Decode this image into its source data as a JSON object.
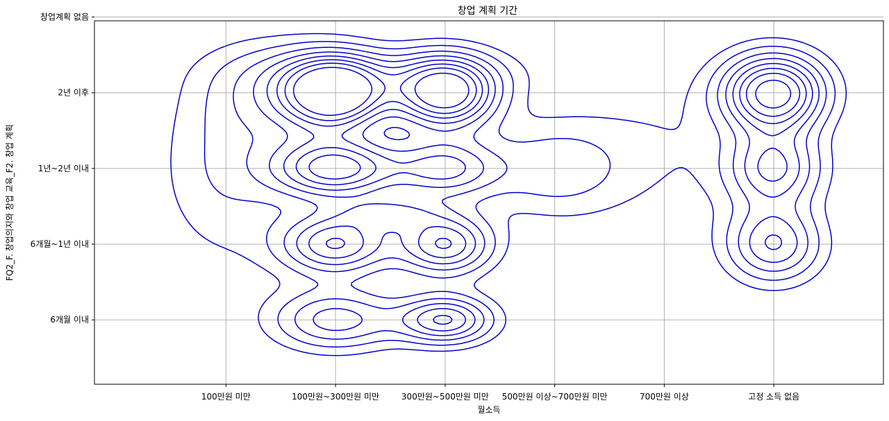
{
  "chart_data": {
    "type": "kde-contour",
    "title": "창업 계획 기간",
    "xlabel": "월소득",
    "ylabel": "FQ2_F. 창업의지와 창업 교육_F2. 창업 계획",
    "x_categories": [
      "100만원 미만",
      "100만원~300만원 미만",
      "300만원~500만원 미만",
      "500만원 이상~700만원 미만",
      "700만원 이상",
      "고정 소득 없음"
    ],
    "y_categories": [
      "6개월 이내",
      "6개월~1년 이내",
      "1년~2년 이내",
      "2년 이후",
      "창업계획 없음"
    ],
    "xlim": [
      -1.2,
      6.0
    ],
    "ylim": [
      -0.85,
      3.95
    ],
    "grid": true,
    "line_color": "#0000cc",
    "density_peaks": [
      {
        "x": 1.0,
        "y": 3.0,
        "sx": 0.32,
        "sy": 0.32,
        "w": 1.0
      },
      {
        "x": 2.0,
        "y": 3.0,
        "sx": 0.32,
        "sy": 0.32,
        "w": 0.95
      },
      {
        "x": 0.5,
        "y": 3.0,
        "sx": 0.45,
        "sy": 0.45,
        "w": 0.25
      },
      {
        "x": 1.5,
        "y": 3.3,
        "sx": 0.9,
        "sy": 0.25,
        "w": 0.15
      },
      {
        "x": 1.0,
        "y": 2.0,
        "sx": 0.4,
        "sy": 0.28,
        "w": 0.75
      },
      {
        "x": 2.0,
        "y": 2.0,
        "sx": 0.35,
        "sy": 0.28,
        "w": 0.5
      },
      {
        "x": 1.5,
        "y": 1.4,
        "sx": 0.3,
        "sy": 0.15,
        "w": 0.3
      },
      {
        "x": 1.0,
        "y": 1.0,
        "sx": 0.35,
        "sy": 0.28,
        "w": 0.6
      },
      {
        "x": 2.0,
        "y": 1.0,
        "sx": 0.3,
        "sy": 0.28,
        "w": 0.6
      },
      {
        "x": 1.0,
        "y": 0.0,
        "sx": 0.4,
        "sy": 0.28,
        "w": 0.45
      },
      {
        "x": 2.0,
        "y": 0.0,
        "sx": 0.3,
        "sy": 0.22,
        "w": 0.6
      },
      {
        "x": 3.0,
        "y": 2.0,
        "sx": 0.45,
        "sy": 0.45,
        "w": 0.25
      },
      {
        "x": 0.0,
        "y": 2.0,
        "sx": 0.45,
        "sy": 0.9,
        "w": 0.2
      },
      {
        "x": 5.0,
        "y": 3.0,
        "sx": 0.32,
        "sy": 0.35,
        "w": 0.9
      },
      {
        "x": 5.0,
        "y": 2.0,
        "sx": 0.3,
        "sy": 0.35,
        "w": 0.5
      },
      {
        "x": 5.0,
        "y": 1.0,
        "sx": 0.3,
        "sy": 0.35,
        "w": 0.5
      },
      {
        "x": 4.0,
        "y": 2.3,
        "sx": 0.6,
        "sy": 0.8,
        "w": 0.1
      }
    ],
    "levels": [
      0.11,
      0.2,
      0.3,
      0.4,
      0.5,
      0.6,
      0.7,
      0.82
    ]
  }
}
